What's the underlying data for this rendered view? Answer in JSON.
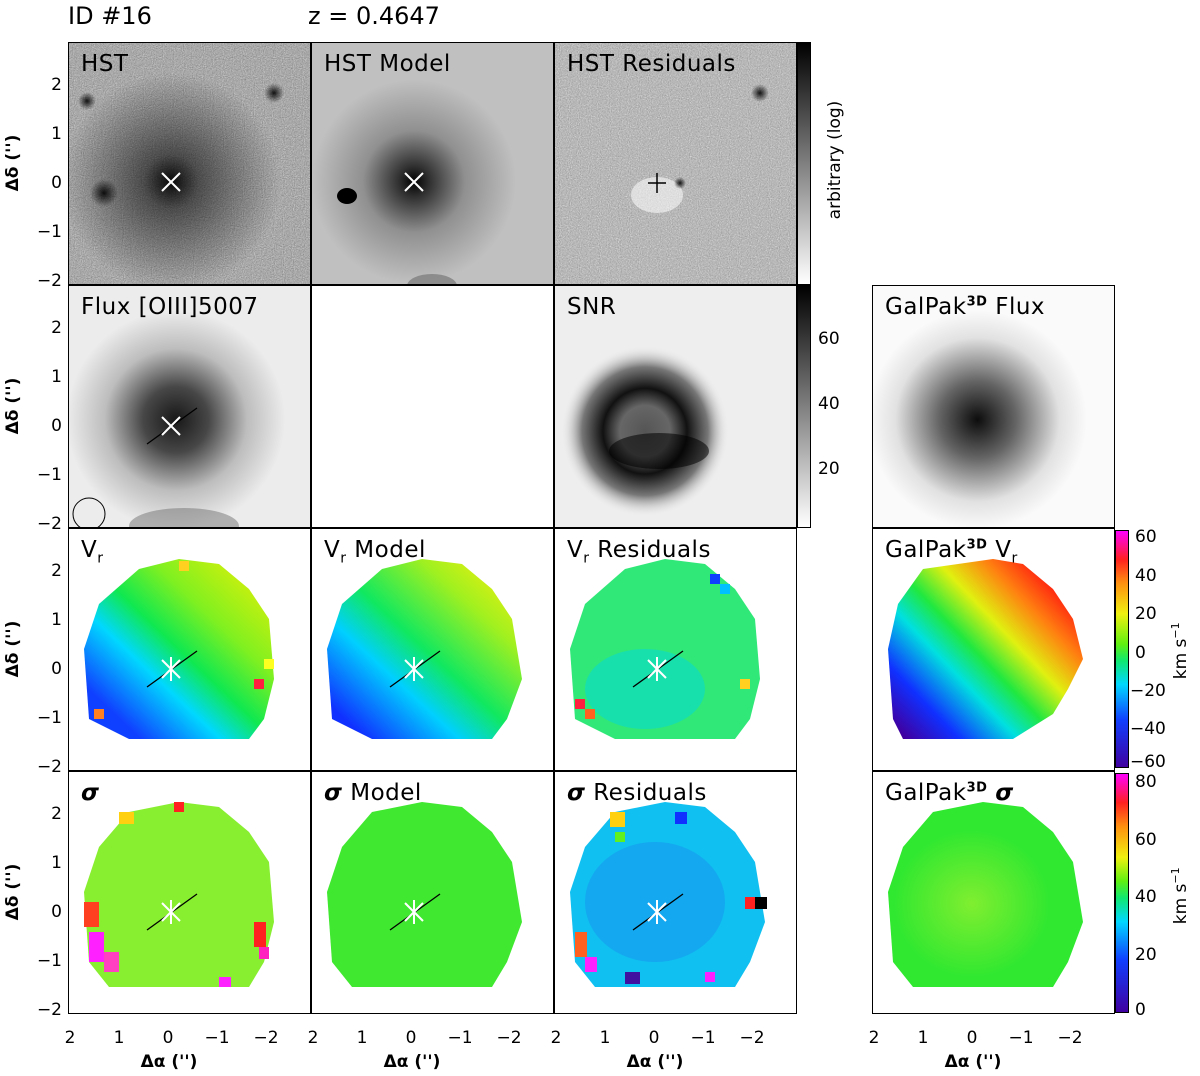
{
  "figure": {
    "id_label": "ID #16",
    "redshift_label": "z = 0.4647"
  },
  "rows": [
    {
      "name": "hst",
      "panels": [
        "HST",
        "HST Model",
        "HST Residuals",
        ""
      ],
      "colorbar": {
        "label": "arbitrary (log)",
        "ticks": []
      }
    },
    {
      "name": "flux",
      "panels": [
        "Flux [OIII]5007",
        "",
        "SNR",
        "GalPak3D Flux"
      ],
      "colorbar": {
        "label": "",
        "ticks": [
          "60",
          "40",
          "20"
        ]
      }
    },
    {
      "name": "velocity",
      "panels": [
        "Vr",
        "Vr Model",
        "Vr Residuals",
        "GalPak3D Vr"
      ],
      "colorbar": {
        "label": "km s-1",
        "ticks": [
          "60",
          "40",
          "20",
          "0",
          "−20",
          "−40",
          "−60"
        ]
      }
    },
    {
      "name": "dispersion",
      "panels": [
        "σ",
        "σ Model",
        "σ Residuals",
        "GalPak3D σ"
      ],
      "colorbar": {
        "label": "km s-1",
        "ticks": [
          "80",
          "60",
          "40",
          "20",
          "0"
        ]
      }
    }
  ],
  "axes": {
    "ylabel": "Δδ ('')",
    "xlabel": "Δα ('')",
    "yticks": [
      "2",
      "1",
      "0",
      "−1",
      "−2"
    ],
    "xticks": [
      "2",
      "1",
      "0",
      "−1",
      "−2"
    ]
  },
  "labels": {
    "hst": "HST",
    "hst_model": "HST Model",
    "hst_resid": "HST Residuals",
    "flux_pre": "Flux ",
    "flux_line": "[OIII]5007",
    "snr": "SNR",
    "galpak": "GalPak",
    "galpak_sup": "3D",
    "galpak_flux": " Flux",
    "vr_v": "V",
    "vr_sub": "r",
    "model": " Model",
    "residuals": " Residuals",
    "sigma": "σ",
    "kms": "km s",
    "kms_sup": "−1",
    "arbitrary": "arbitrary (log)"
  }
}
